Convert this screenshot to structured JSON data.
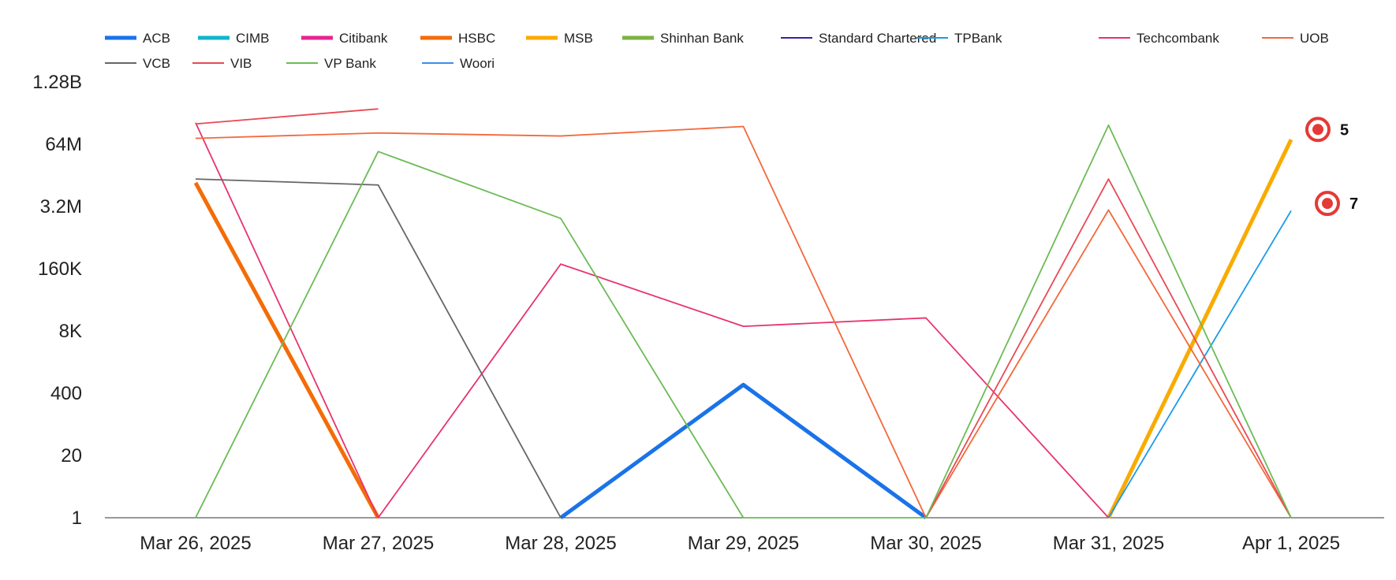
{
  "chart_data": {
    "type": "line",
    "title": "",
    "xlabel": "",
    "ylabel": "",
    "y_scale": "log",
    "ylim": [
      1,
      1280000000
    ],
    "grid": false,
    "legend_position": "top",
    "categories": [
      "Mar 26, 2025",
      "Mar 27, 2025",
      "Mar 28, 2025",
      "Mar 29, 2025",
      "Mar 30, 2025",
      "Mar 31, 2025",
      "Apr 1, 2025"
    ],
    "y_ticks": [
      {
        "value": 1,
        "label": "1"
      },
      {
        "value": 20,
        "label": "20"
      },
      {
        "value": 400,
        "label": "400"
      },
      {
        "value": 8000,
        "label": "8K"
      },
      {
        "value": 160000,
        "label": "160K"
      },
      {
        "value": 3200000,
        "label": "3.2M"
      },
      {
        "value": 64000000,
        "label": "64M"
      },
      {
        "value": 1280000000,
        "label": "1.28B"
      }
    ],
    "series": [
      {
        "name": "ACB",
        "color": "#1a73e8",
        "thick": true,
        "values": [
          null,
          null,
          1,
          600,
          1,
          null,
          null
        ]
      },
      {
        "name": "CIMB",
        "color": "#12b5cb",
        "thick": true,
        "values": [
          null,
          null,
          null,
          null,
          null,
          null,
          null
        ]
      },
      {
        "name": "Citibank",
        "color": "#e52592",
        "thick": true,
        "values": [
          null,
          null,
          null,
          null,
          null,
          null,
          null
        ]
      },
      {
        "name": "HSBC",
        "color": "#f46c08",
        "thick": true,
        "values": [
          10000000,
          1,
          null,
          null,
          null,
          null,
          null
        ]
      },
      {
        "name": "MSB",
        "color": "#f9ab00",
        "thick": true,
        "values": [
          null,
          null,
          null,
          null,
          null,
          1,
          80000000
        ]
      },
      {
        "name": "Shinhan Bank",
        "color": "#7cb342",
        "thick": true,
        "values": [
          null,
          null,
          null,
          null,
          null,
          null,
          null
        ]
      },
      {
        "name": "Standard Chartered",
        "color": "#3f1ea8",
        "thick": false,
        "values": [
          null,
          null,
          null,
          null,
          null,
          null,
          null
        ]
      },
      {
        "name": "TPBank",
        "color": "#1a9be8",
        "thick": false,
        "values": [
          null,
          null,
          null,
          null,
          null,
          1,
          2600000
        ]
      },
      {
        "name": "Techcombank",
        "color": "#e8336b",
        "thick": false,
        "values": [
          180000000,
          1,
          200000,
          10000,
          15000,
          1,
          null
        ]
      },
      {
        "name": "UOB",
        "color": "#f4683a",
        "thick": false,
        "values": [
          85000000,
          110000000,
          95000000,
          150000000,
          1,
          2700000,
          1
        ]
      },
      {
        "name": "VCB",
        "color": "#666666",
        "thick": false,
        "values": [
          12000000,
          9000000,
          1,
          null,
          null,
          null,
          null
        ]
      },
      {
        "name": "VIB",
        "color": "#e84a55",
        "thick": false,
        "values": [
          170000000,
          350000000,
          null,
          null,
          1,
          12000000,
          1
        ]
      },
      {
        "name": "VP Bank",
        "color": "#6cbb55",
        "thick": false,
        "values": [
          1,
          45000000,
          1800000,
          1,
          1,
          160000000,
          1
        ]
      },
      {
        "name": "Woori",
        "color": "#3b8ee8",
        "thick": false,
        "values": [
          null,
          null,
          null,
          null,
          null,
          null,
          null
        ]
      }
    ],
    "annotations": [
      {
        "label": "5",
        "x_index": 6,
        "value": 130000000
      },
      {
        "label": "7",
        "x_index": 6,
        "value": 3700000
      }
    ]
  }
}
